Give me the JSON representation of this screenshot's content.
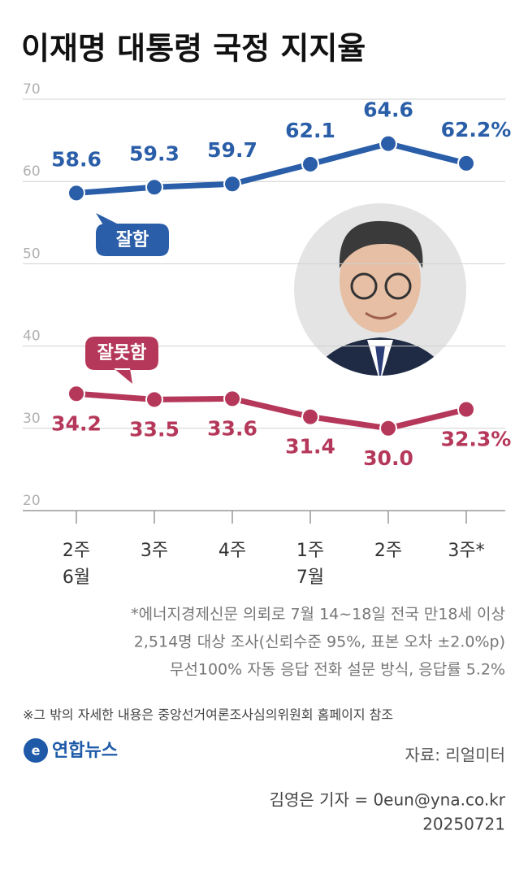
{
  "chart_data": {
    "type": "line",
    "title": "이재명 대통령 국정 지지율",
    "categories": [
      "2주",
      "3주",
      "4주",
      "1주",
      "2주",
      "3주*"
    ],
    "month_labels": [
      "6월",
      null,
      null,
      "7월",
      null,
      null
    ],
    "series": [
      {
        "name": "잘함",
        "color": "#2a5ea8",
        "values": [
          58.6,
          59.3,
          59.7,
          62.1,
          64.6,
          62.2
        ],
        "value_labels": [
          "58.6",
          "59.3",
          "59.7",
          "62.1",
          "64.6",
          "62.2%"
        ]
      },
      {
        "name": "잘못함",
        "color": "#b5385a",
        "values": [
          34.2,
          33.5,
          33.6,
          31.4,
          30.0,
          32.3
        ],
        "value_labels": [
          "34.2",
          "33.5",
          "33.6",
          "31.4",
          "30.0",
          "32.3%"
        ]
      }
    ],
    "ylim": [
      20,
      70
    ],
    "yticks": [
      20,
      30,
      40,
      50,
      60,
      70
    ],
    "grid": true,
    "notes": [
      "*에너지경제신문 의뢰로 7월 14~18일 전국 만18세 이상",
      "2,514명 대상 조사(신뢰수준 95%, 표본 오차 ±2.0%p)",
      "무선100% 자동 응답 전화 설문 방식, 응답률 5.2%"
    ],
    "remark": "※그 밖의 자세한 내용은 중앙선거여론조사심의위원회 홈페이지 참조",
    "brand": "연합뉴스",
    "source": "자료: 리얼미터",
    "byline": "김영은 기자 = 0eun@yna.co.kr",
    "date": "20250721"
  }
}
